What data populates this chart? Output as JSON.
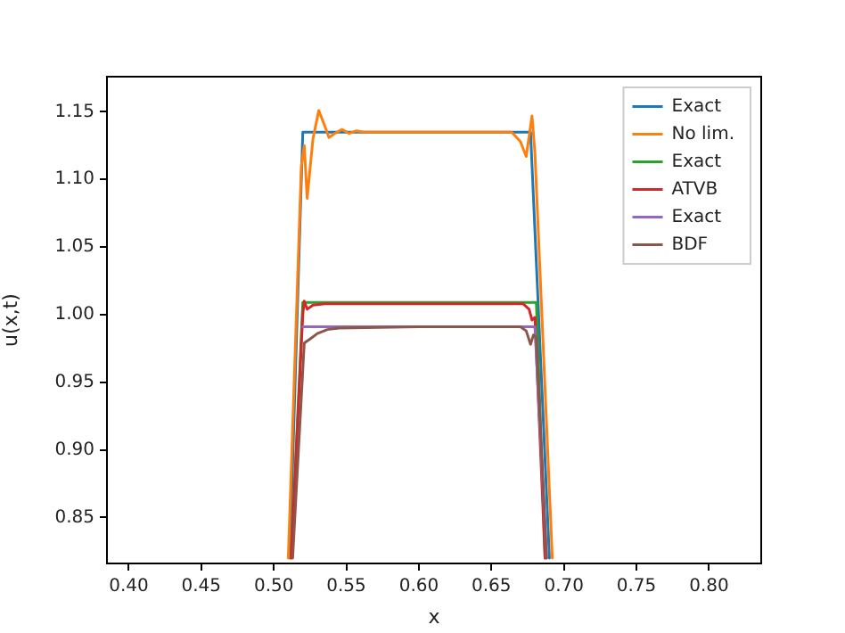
{
  "chart_data": {
    "type": "line",
    "xlabel": "x",
    "ylabel": "u(x,t)",
    "xlim": [
      0.385,
      0.836
    ],
    "ylim": [
      0.816,
      1.176
    ],
    "xticks": [
      {
        "value": 0.4,
        "label": "0.40"
      },
      {
        "value": 0.45,
        "label": "0.45"
      },
      {
        "value": 0.5,
        "label": "0.50"
      },
      {
        "value": 0.55,
        "label": "0.55"
      },
      {
        "value": 0.6,
        "label": "0.60"
      },
      {
        "value": 0.65,
        "label": "0.65"
      },
      {
        "value": 0.7,
        "label": "0.70"
      },
      {
        "value": 0.75,
        "label": "0.75"
      },
      {
        "value": 0.8,
        "label": "0.80"
      }
    ],
    "yticks": [
      {
        "value": 0.85,
        "label": "0.85"
      },
      {
        "value": 0.9,
        "label": "0.90"
      },
      {
        "value": 0.95,
        "label": "0.95"
      },
      {
        "value": 1.0,
        "label": "1.00"
      },
      {
        "value": 1.05,
        "label": "1.05"
      },
      {
        "value": 1.1,
        "label": "1.10"
      },
      {
        "value": 1.15,
        "label": "1.15"
      }
    ],
    "grid": false,
    "legend": "top right",
    "marker": "none",
    "line_style": "solid",
    "series": [
      {
        "name": "Exact",
        "color": "#1f77b4",
        "x": [
          0.511,
          0.52,
          0.677,
          0.69
        ],
        "values": [
          0.82,
          1.135,
          1.135,
          0.82
        ]
      },
      {
        "name": "No lim.",
        "color": "#ff7f0e",
        "x": [
          0.51,
          0.519,
          0.521,
          0.523,
          0.527,
          0.531,
          0.535,
          0.538,
          0.542,
          0.547,
          0.552,
          0.557,
          0.562,
          0.6,
          0.664,
          0.67,
          0.674,
          0.676,
          0.678,
          0.68,
          0.692
        ],
        "values": [
          0.82,
          1.11,
          1.125,
          1.086,
          1.13,
          1.151,
          1.14,
          1.131,
          1.134,
          1.137,
          1.134,
          1.136,
          1.135,
          1.135,
          1.135,
          1.128,
          1.117,
          1.132,
          1.147,
          1.12,
          0.82
        ]
      },
      {
        "name": "Exact",
        "color": "#2ca02c",
        "x": [
          0.512,
          0.52,
          0.6,
          0.681,
          0.687
        ],
        "values": [
          0.82,
          1.009,
          1.009,
          1.009,
          0.82
        ]
      },
      {
        "name": "ATVB",
        "color": "#d62728",
        "x": [
          0.512,
          0.52,
          0.521,
          0.523,
          0.527,
          0.535,
          0.6,
          0.672,
          0.676,
          0.678,
          0.68,
          0.687
        ],
        "values": [
          0.82,
          1.0,
          1.01,
          1.004,
          1.007,
          1.008,
          1.008,
          1.008,
          1.004,
          0.996,
          0.998,
          0.82
        ]
      },
      {
        "name": "Exact",
        "color": "#9467bd",
        "x": [
          0.52,
          0.68,
          0.688
        ],
        "values": [
          0.991,
          0.991,
          0.82
        ]
      },
      {
        "name": "BDF",
        "color": "#8c564b",
        "x": [
          0.513,
          0.521,
          0.525,
          0.53,
          0.537,
          0.545,
          0.6,
          0.67,
          0.674,
          0.677,
          0.679,
          0.681,
          0.688
        ],
        "values": [
          0.82,
          0.979,
          0.982,
          0.986,
          0.989,
          0.99,
          0.991,
          0.991,
          0.988,
          0.978,
          0.985,
          0.983,
          0.82
        ]
      }
    ]
  }
}
